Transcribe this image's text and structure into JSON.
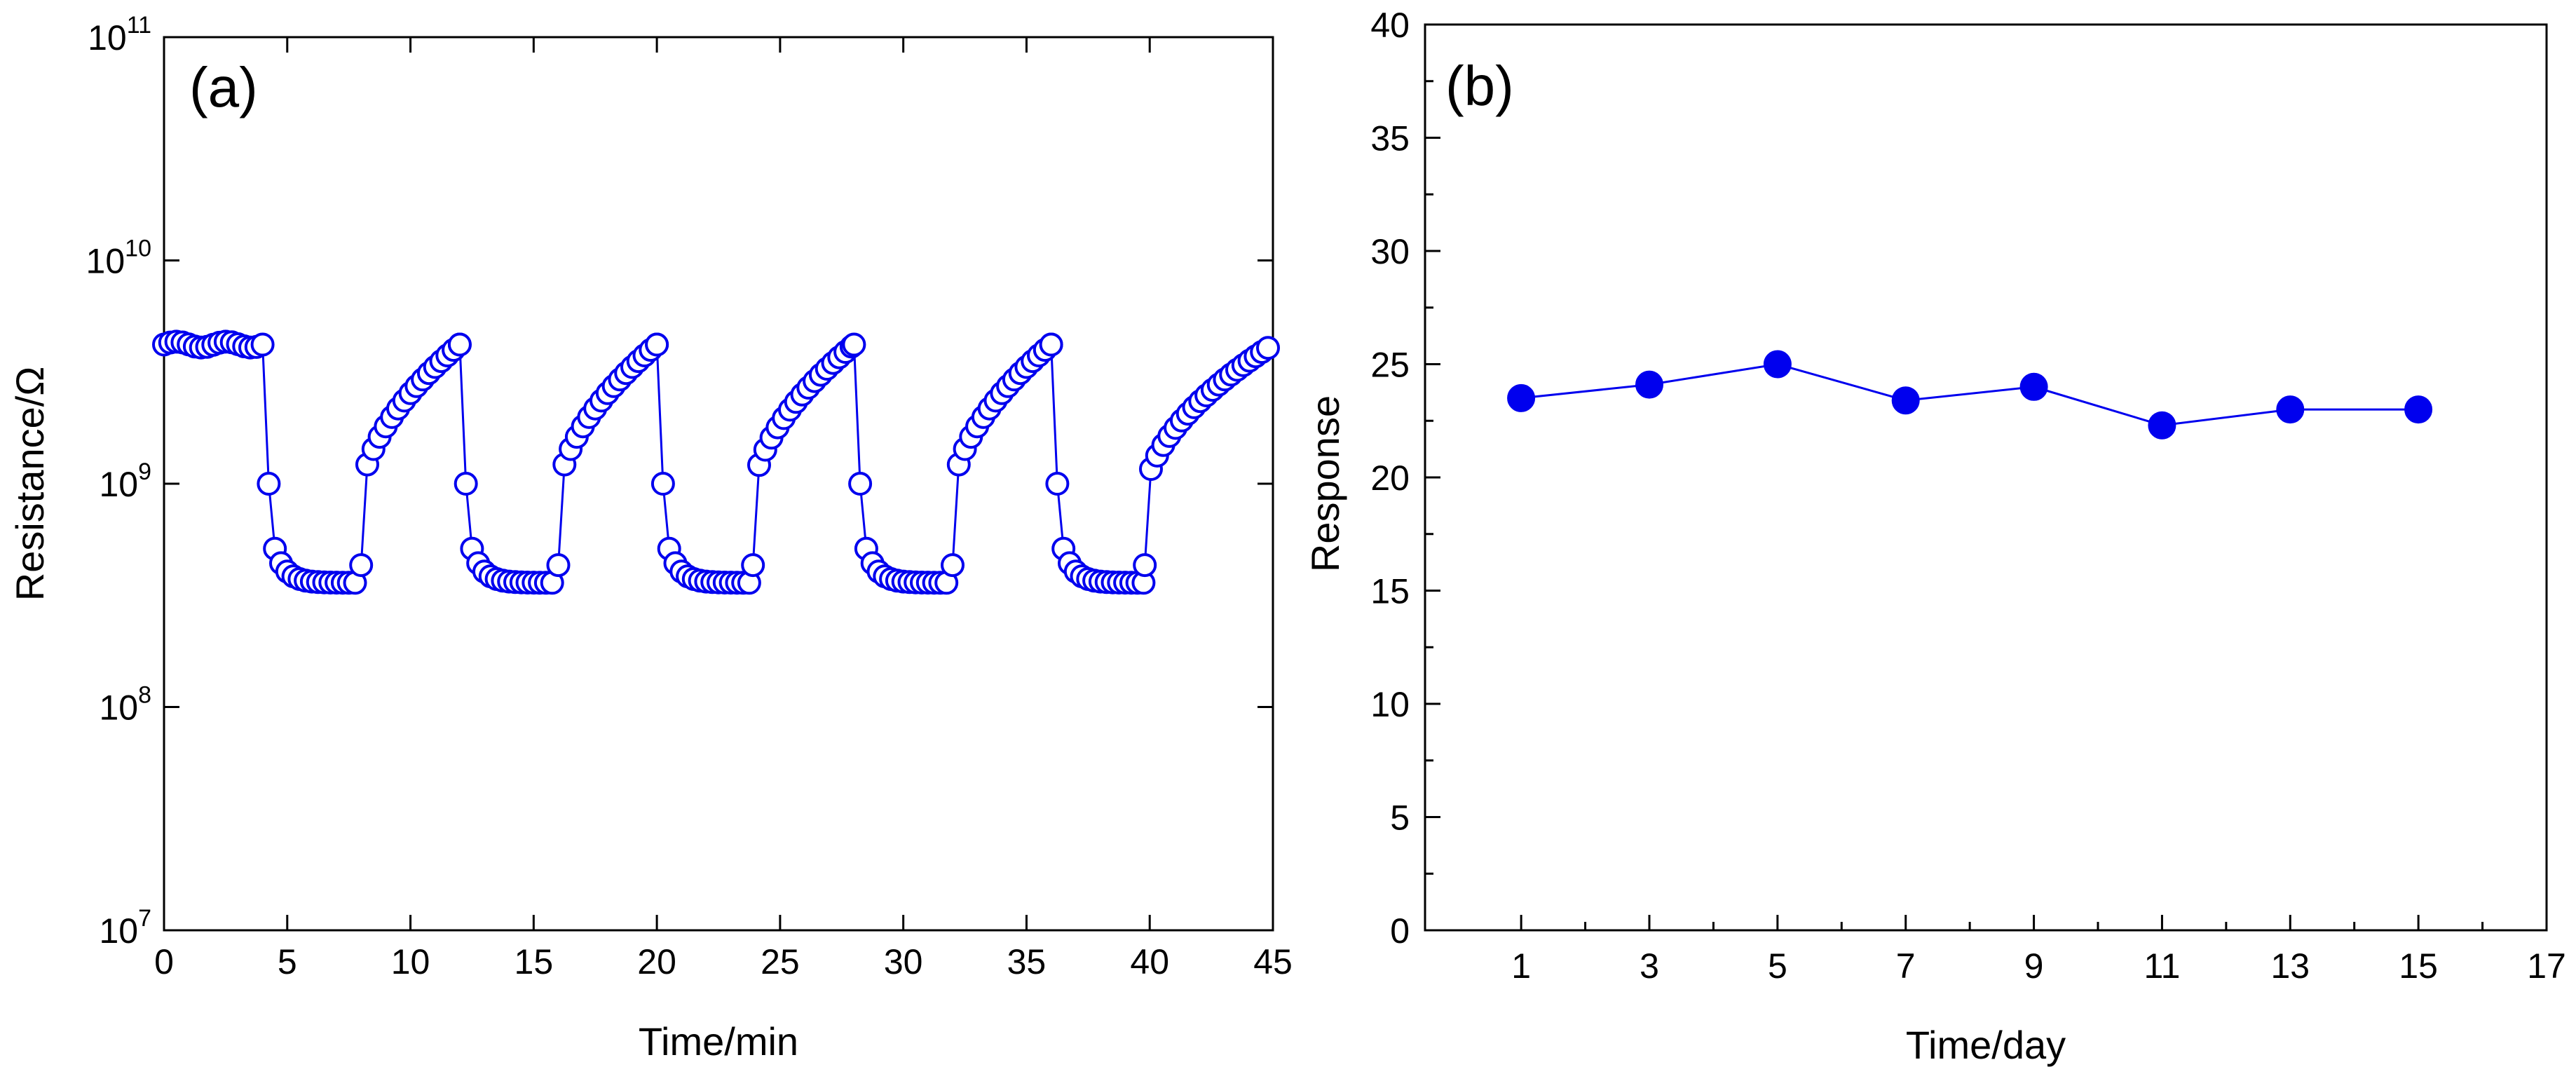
{
  "colors": {
    "series": "#0000ee",
    "marker_open_fill": "#ffffff",
    "axis": "#000000"
  },
  "chart_data": [
    {
      "type": "scatter",
      "panel_label": "(a)",
      "title": "",
      "xlabel": "Time/min",
      "ylabel": "Resistance/Ω",
      "xlim": [
        0,
        45
      ],
      "ylim": [
        10000000,
        100000000000
      ],
      "yscale": "log",
      "xticks": [
        0,
        5,
        10,
        15,
        20,
        25,
        30,
        35,
        40,
        45
      ],
      "xtick_labels": [
        "0",
        "5",
        "10",
        "15",
        "20",
        "25",
        "30",
        "35",
        "40",
        "45"
      ],
      "yticks": [
        {
          "value": 10000000,
          "base": "10",
          "exp": "7"
        },
        {
          "value": 100000000,
          "base": "10",
          "exp": "8"
        },
        {
          "value": 1000000000,
          "base": "10",
          "exp": "9"
        },
        {
          "value": 10000000000,
          "base": "10",
          "exp": "10"
        },
        {
          "value": 100000000000,
          "base": "10",
          "exp": "11"
        }
      ],
      "marker": "open-circle",
      "line": true,
      "series_description": "Five repeated response/recovery cycles: baseline about 4.2e9 Ω, drops to about 3.6e8 Ω at gas exposure, recovers to baseline",
      "cycles": [
        {
          "on": 4.0,
          "off": 8.0,
          "recover_end": 12.0
        },
        {
          "on": 12.0,
          "off": 16.0,
          "recover_end": 20.0
        },
        {
          "on": 20.0,
          "off": 23.9,
          "recover_end": 28.0
        },
        {
          "on": 28.0,
          "off": 32.0,
          "recover_end": 36.0
        },
        {
          "on": 36.0,
          "off": 39.8,
          "recover_end": 45.0
        }
      ],
      "baseline": 4200000000,
      "low": 360000000,
      "first_drop_value": 1000000000,
      "sample_step": 0.25
    },
    {
      "type": "line",
      "panel_label": "(b)",
      "title": "",
      "xlabel": "Time/day",
      "ylabel": "Response",
      "xlim": [
        -0.5,
        17
      ],
      "ylim": [
        0,
        40
      ],
      "xticks": [
        1,
        3,
        5,
        7,
        9,
        11,
        13,
        15,
        17
      ],
      "xtick_labels": [
        "1",
        "3",
        "5",
        "7",
        "9",
        "11",
        "13",
        "15",
        "17"
      ],
      "yticks": [
        0,
        5,
        10,
        15,
        20,
        25,
        30,
        35,
        40
      ],
      "ytick_labels": [
        "0",
        "5",
        "10",
        "15",
        "20",
        "25",
        "30",
        "35",
        "40"
      ],
      "marker": "filled-circle",
      "x": [
        1,
        3,
        5,
        7,
        9,
        11,
        13,
        15
      ],
      "y": [
        23.5,
        24.1,
        25.0,
        23.4,
        24.0,
        22.3,
        23.0,
        23.0
      ]
    }
  ]
}
